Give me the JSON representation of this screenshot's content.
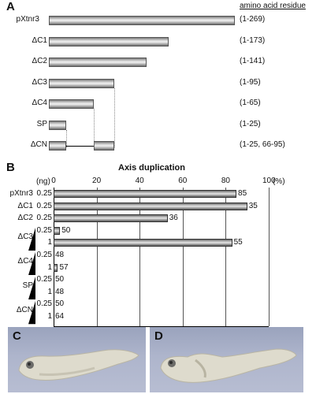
{
  "panel_a": {
    "letter": "A",
    "header": "amino acid residue",
    "constructs": [
      {
        "name": "pXtnr3",
        "range": "(1-269)",
        "coverage": 1.0
      },
      {
        "name": "ΔC1",
        "range": "(1-173)",
        "coverage": 0.643
      },
      {
        "name": "ΔC2",
        "range": "(1-141)",
        "coverage": 0.524
      },
      {
        "name": "ΔC3",
        "range": "(1-95)",
        "coverage": 0.353
      },
      {
        "name": "ΔC4",
        "range": "(1-65)",
        "coverage": 0.242
      },
      {
        "name": "SP",
        "range": "(1-25)",
        "coverage": 0.093
      },
      {
        "name": "ΔCN",
        "range": "(1-25, 66-95)",
        "coverage": 0.353
      }
    ]
  },
  "panel_b": {
    "letter": "B",
    "title": "Axis duplication",
    "unit_label": "(ng)",
    "percent_label": "(%)",
    "chart_data": {
      "type": "bar",
      "orientation": "horizontal",
      "title": "Axis duplication",
      "xlim": [
        0,
        100
      ],
      "x_ticks": [
        "0",
        "20",
        "40",
        "60",
        "80",
        "100"
      ],
      "rows": [
        {
          "group": "pXtnr3",
          "dose": "0.25",
          "value": 85,
          "n": "85"
        },
        {
          "group": "ΔC1",
          "dose": "0.25",
          "value": 90,
          "n": "35"
        },
        {
          "group": "ΔC2",
          "dose": "0.25",
          "value": 53,
          "n": "36"
        },
        {
          "group": "ΔC3",
          "dose": "0.25",
          "value": 3,
          "n": "50"
        },
        {
          "group": "",
          "dose": "1",
          "value": 83,
          "n": "55"
        },
        {
          "group": "ΔC4",
          "dose": "0.25",
          "value": 0,
          "n": "48"
        },
        {
          "group": "",
          "dose": "1",
          "value": 2,
          "n": "57"
        },
        {
          "group": "SP",
          "dose": "0.25",
          "value": 0,
          "n": "50"
        },
        {
          "group": "",
          "dose": "1",
          "value": 0,
          "n": "48"
        },
        {
          "group": "ΔCN",
          "dose": "0.25",
          "value": 0,
          "n": "50"
        },
        {
          "group": "",
          "dose": "1",
          "value": 0,
          "n": "64"
        }
      ]
    }
  },
  "panel_c": {
    "letter": "C"
  },
  "panel_d": {
    "letter": "D"
  }
}
